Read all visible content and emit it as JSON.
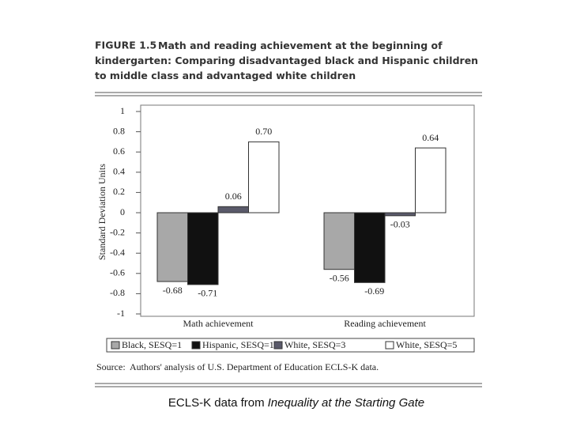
{
  "chart_data": {
    "type": "bar",
    "figure_label": "FIGURE 1.5",
    "title_lines": [
      "Math and reading achievement at the beginning of",
      "kindergarten: Comparing disadvantaged black and Hispanic children",
      "to middle class and advantaged white children"
    ],
    "ylabel": "Standard Deviation Units",
    "categories": [
      "Math achievement",
      "Reading achievement"
    ],
    "series": [
      {
        "name": "Black, SESQ=1",
        "color": "#a8a8a8",
        "values": [
          -0.68,
          -0.56
        ],
        "value_labels": [
          "-0.68",
          "-0.56"
        ]
      },
      {
        "name": "Hispanic, SESQ=1",
        "color": "#111111",
        "values": [
          -0.71,
          -0.69
        ],
        "value_labels": [
          "-0.71",
          "-0.69"
        ]
      },
      {
        "name": "White, SESQ=3",
        "color": "#5a5a6a",
        "values": [
          0.06,
          -0.03
        ],
        "value_labels": [
          "0.06",
          "-0.03"
        ]
      },
      {
        "name": "White, SESQ=5",
        "color": "#ffffff",
        "values": [
          0.7,
          0.64
        ],
        "value_labels": [
          "0.70",
          "0.64"
        ]
      }
    ],
    "ylim": [
      -1,
      1
    ],
    "yticks": [
      1,
      0.8,
      0.6,
      0.4,
      0.2,
      0,
      -0.2,
      -0.4,
      -0.6,
      -0.8,
      -1
    ],
    "source_label": "Source:",
    "source": "Authors' analysis of U.S. Department of Education ECLS-K data."
  },
  "caption": {
    "text": "ECLS-K data from",
    "italic": "Inequality at the Starting Gate"
  }
}
